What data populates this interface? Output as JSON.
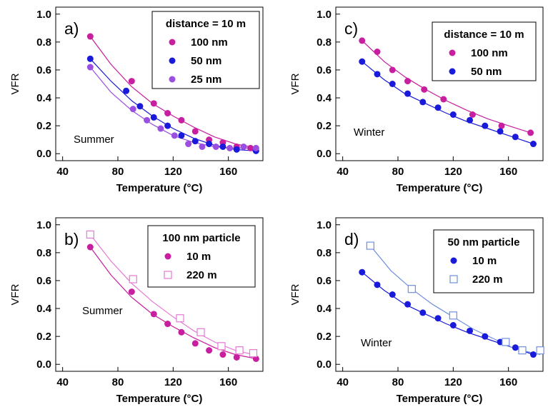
{
  "chart_data": [
    {
      "panel": "a)",
      "type": "scatter",
      "annotation": "Summer",
      "ylabel": "VFR",
      "xlabel": "Temperature (°C)",
      "xlim": [
        35,
        185
      ],
      "ylim": [
        -0.05,
        1.05
      ],
      "xticks": [
        40,
        80,
        120,
        160
      ],
      "yticks": [
        0.0,
        0.2,
        0.4,
        0.6,
        0.8,
        1.0
      ],
      "legend_title": "distance = 10 m",
      "legend_position": "top-right",
      "series": [
        {
          "name": "100 nm",
          "color": "#c71fa0",
          "marker": "circle",
          "x": [
            60,
            90,
            106,
            116,
            126,
            136,
            146,
            156,
            166,
            176
          ],
          "y": [
            0.84,
            0.52,
            0.36,
            0.29,
            0.24,
            0.16,
            0.1,
            0.08,
            0.05,
            0.04
          ],
          "fit": [
            [
              60,
              0.84
            ],
            [
              75,
              0.64
            ],
            [
              90,
              0.48
            ],
            [
              105,
              0.36
            ],
            [
              120,
              0.27
            ],
            [
              135,
              0.19
            ],
            [
              150,
              0.12
            ],
            [
              165,
              0.07
            ],
            [
              180,
              0.04
            ]
          ]
        },
        {
          "name": "50 nm",
          "color": "#1a1adb",
          "marker": "circle",
          "x": [
            60,
            86,
            96,
            106,
            116,
            126,
            136,
            146,
            156,
            166,
            180
          ],
          "y": [
            0.68,
            0.45,
            0.34,
            0.26,
            0.2,
            0.13,
            0.09,
            0.07,
            0.05,
            0.03,
            0.02
          ],
          "fit": [
            [
              60,
              0.68
            ],
            [
              75,
              0.52
            ],
            [
              90,
              0.38
            ],
            [
              105,
              0.27
            ],
            [
              120,
              0.18
            ],
            [
              135,
              0.11
            ],
            [
              150,
              0.06
            ],
            [
              165,
              0.03
            ],
            [
              180,
              0.02
            ]
          ]
        },
        {
          "name": "25 nm",
          "color": "#9b4fe0",
          "marker": "circle",
          "x": [
            60,
            91,
            101,
            111,
            121,
            131,
            141,
            151,
            161,
            171,
            180
          ],
          "y": [
            0.62,
            0.32,
            0.24,
            0.18,
            0.13,
            0.07,
            0.05,
            0.05,
            0.04,
            0.05,
            0.04
          ],
          "fit": [
            [
              60,
              0.62
            ],
            [
              75,
              0.44
            ],
            [
              90,
              0.31
            ],
            [
              105,
              0.21
            ],
            [
              120,
              0.13
            ],
            [
              135,
              0.08
            ],
            [
              150,
              0.05
            ],
            [
              165,
              0.04
            ],
            [
              180,
              0.04
            ]
          ]
        }
      ]
    },
    {
      "panel": "c)",
      "type": "scatter",
      "annotation": "Winter",
      "ylabel": "VFR",
      "xlabel": "Temperature (°C)",
      "xlim": [
        35,
        185
      ],
      "ylim": [
        -0.05,
        1.05
      ],
      "xticks": [
        40,
        80,
        120,
        160
      ],
      "yticks": [
        0.0,
        0.2,
        0.4,
        0.6,
        0.8,
        1.0
      ],
      "legend_title": "distance = 10 m",
      "legend_position": "top-right",
      "series": [
        {
          "name": "100 nm",
          "color": "#c71fa0",
          "marker": "circle",
          "x": [
            54,
            65,
            76,
            87,
            99,
            113,
            134,
            155,
            176
          ],
          "y": [
            0.81,
            0.73,
            0.6,
            0.52,
            0.46,
            0.39,
            0.28,
            0.2,
            0.15
          ],
          "fit": [
            [
              54,
              0.81
            ],
            [
              70,
              0.66
            ],
            [
              85,
              0.55
            ],
            [
              100,
              0.46
            ],
            [
              115,
              0.38
            ],
            [
              130,
              0.31
            ],
            [
              145,
              0.25
            ],
            [
              160,
              0.2
            ],
            [
              176,
              0.15
            ]
          ]
        },
        {
          "name": "50 nm",
          "color": "#1a1adb",
          "marker": "circle",
          "x": [
            54,
            65,
            76,
            87,
            98,
            109,
            120,
            132,
            143,
            154,
            165,
            178
          ],
          "y": [
            0.66,
            0.57,
            0.5,
            0.43,
            0.37,
            0.33,
            0.28,
            0.24,
            0.2,
            0.16,
            0.12,
            0.07
          ],
          "fit": [
            [
              54,
              0.66
            ],
            [
              70,
              0.53
            ],
            [
              85,
              0.43
            ],
            [
              100,
              0.36
            ],
            [
              115,
              0.29
            ],
            [
              130,
              0.23
            ],
            [
              145,
              0.18
            ],
            [
              160,
              0.13
            ],
            [
              178,
              0.07
            ]
          ]
        }
      ]
    },
    {
      "panel": "b)",
      "type": "scatter",
      "annotation": "Summer",
      "ylabel": "VFR",
      "xlabel": "Temperature (°C)",
      "xlim": [
        35,
        185
      ],
      "ylim": [
        -0.05,
        1.05
      ],
      "xticks": [
        40,
        80,
        120,
        160
      ],
      "yticks": [
        0.0,
        0.2,
        0.4,
        0.6,
        0.8,
        1.0
      ],
      "legend_title": "100 nm particle",
      "legend_position": "top-right",
      "series": [
        {
          "name": "10 m",
          "color": "#c71fa0",
          "marker": "circle",
          "x": [
            60,
            90,
            106,
            116,
            126,
            136,
            146,
            156,
            166,
            180
          ],
          "y": [
            0.84,
            0.52,
            0.36,
            0.29,
            0.23,
            0.15,
            0.1,
            0.07,
            0.05,
            0.04
          ],
          "fit": [
            [
              60,
              0.84
            ],
            [
              75,
              0.64
            ],
            [
              90,
              0.48
            ],
            [
              105,
              0.36
            ],
            [
              120,
              0.27
            ],
            [
              135,
              0.19
            ],
            [
              150,
              0.12
            ],
            [
              165,
              0.07
            ],
            [
              180,
              0.04
            ]
          ]
        },
        {
          "name": "220 m",
          "color": "#e678d6",
          "marker": "square-open",
          "x": [
            60,
            91,
            125,
            140,
            155,
            168,
            178
          ],
          "y": [
            0.93,
            0.61,
            0.33,
            0.23,
            0.13,
            0.1,
            0.08
          ],
          "fit": [
            [
              60,
              0.93
            ],
            [
              75,
              0.74
            ],
            [
              90,
              0.58
            ],
            [
              105,
              0.45
            ],
            [
              120,
              0.34
            ],
            [
              135,
              0.24
            ],
            [
              150,
              0.16
            ],
            [
              165,
              0.1
            ],
            [
              178,
              0.07
            ]
          ]
        }
      ]
    },
    {
      "panel": "d)",
      "type": "scatter",
      "annotation": "Winter",
      "ylabel": "VFR",
      "xlabel": "Temperature (°C)",
      "xlim": [
        35,
        185
      ],
      "ylim": [
        -0.05,
        1.05
      ],
      "xticks": [
        40,
        80,
        120,
        160
      ],
      "yticks": [
        0.0,
        0.2,
        0.4,
        0.6,
        0.8,
        1.0
      ],
      "legend_title": "50 nm particle",
      "legend_position": "top-right",
      "series": [
        {
          "name": "10 m",
          "color": "#1a1adb",
          "marker": "circle",
          "x": [
            54,
            65,
            76,
            87,
            98,
            109,
            120,
            132,
            143,
            154,
            165,
            178
          ],
          "y": [
            0.66,
            0.57,
            0.5,
            0.43,
            0.37,
            0.33,
            0.28,
            0.24,
            0.2,
            0.16,
            0.12,
            0.07
          ],
          "fit": [
            [
              54,
              0.66
            ],
            [
              70,
              0.53
            ],
            [
              85,
              0.43
            ],
            [
              100,
              0.36
            ],
            [
              115,
              0.29
            ],
            [
              130,
              0.23
            ],
            [
              145,
              0.18
            ],
            [
              160,
              0.13
            ],
            [
              178,
              0.07
            ]
          ]
        },
        {
          "name": "220 m",
          "color": "#6f8fe0",
          "marker": "square-open",
          "x": [
            60,
            90,
            120,
            158,
            170,
            183
          ],
          "y": [
            0.85,
            0.54,
            0.35,
            0.16,
            0.1,
            0.1
          ],
          "fit": [
            [
              60,
              0.85
            ],
            [
              75,
              0.67
            ],
            [
              90,
              0.54
            ],
            [
              105,
              0.43
            ],
            [
              120,
              0.34
            ],
            [
              135,
              0.25
            ],
            [
              150,
              0.18
            ],
            [
              165,
              0.11
            ],
            [
              183,
              0.07
            ]
          ]
        }
      ]
    }
  ]
}
